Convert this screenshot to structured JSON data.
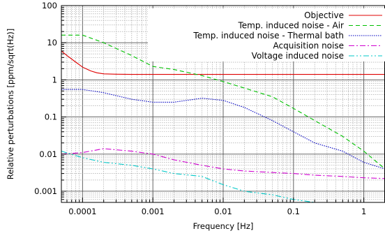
{
  "chart_data": {
    "type": "line",
    "xlabel": "Frequency [Hz]",
    "ylabel": "Relative perturbations [ppm/sqrt(Hz)]",
    "xscale": "log",
    "yscale": "log",
    "xlim": [
      5e-05,
      2
    ],
    "ylim": [
      0.0005,
      100
    ],
    "grid": true,
    "legend_position": "top-right",
    "x_tick_labels": [
      "0.0001",
      "0.001",
      "0.01",
      "0.1",
      "1"
    ],
    "y_tick_labels": [
      "0.001",
      "0.01",
      "0.1",
      "1",
      "10",
      "100"
    ],
    "series": [
      {
        "name": "Objective",
        "color": "#e00000",
        "dash": "solid",
        "x": [
          5e-05,
          6e-05,
          8e-05,
          0.0001,
          0.00013,
          0.00016,
          0.0002,
          0.0003,
          0.0005,
          0.001,
          0.01,
          0.1,
          1,
          2
        ],
        "y": [
          6.0,
          4.5,
          3.0,
          2.2,
          1.75,
          1.55,
          1.45,
          1.42,
          1.4,
          1.4,
          1.4,
          1.4,
          1.4,
          1.4
        ]
      },
      {
        "name": "Temp. induced noise - Air",
        "color": "#00c000",
        "dash": "dashed",
        "x": [
          5e-05,
          0.0001,
          0.0002,
          0.0005,
          0.001,
          0.002,
          0.005,
          0.01,
          0.02,
          0.05,
          0.1,
          0.2,
          0.5,
          1,
          2
        ],
        "y": [
          16,
          16,
          10,
          4.5,
          2.3,
          1.9,
          1.3,
          0.9,
          0.6,
          0.35,
          0.17,
          0.08,
          0.03,
          0.012,
          0.004
        ]
      },
      {
        "name": "Temp. induced noise - Thermal bath",
        "color": "#0000c0",
        "dash": "dotted",
        "x": [
          5e-05,
          0.0001,
          0.0002,
          0.0005,
          0.001,
          0.002,
          0.005,
          0.01,
          0.02,
          0.05,
          0.1,
          0.2,
          0.5,
          1,
          2
        ],
        "y": [
          0.55,
          0.55,
          0.45,
          0.3,
          0.25,
          0.25,
          0.32,
          0.28,
          0.18,
          0.08,
          0.04,
          0.02,
          0.012,
          0.006,
          0.004
        ]
      },
      {
        "name": "Acquisition noise",
        "color": "#d000d0",
        "dash": "dash-dot",
        "x": [
          5e-05,
          0.0001,
          0.0002,
          0.0005,
          0.001,
          0.002,
          0.005,
          0.01,
          0.02,
          0.05,
          0.1,
          0.2,
          0.5,
          1,
          2
        ],
        "y": [
          0.01,
          0.011,
          0.014,
          0.012,
          0.01,
          0.007,
          0.005,
          0.004,
          0.0035,
          0.0032,
          0.003,
          0.0027,
          0.0025,
          0.0023,
          0.0022
        ]
      },
      {
        "name": "Voltage induced noise",
        "color": "#00c8c8",
        "dash": "dash-dot-dot",
        "x": [
          5e-05,
          0.0001,
          0.0002,
          0.0005,
          0.001,
          0.002,
          0.005,
          0.01,
          0.02,
          0.05,
          0.1,
          0.2
        ],
        "y": [
          0.012,
          0.008,
          0.006,
          0.005,
          0.004,
          0.003,
          0.0025,
          0.0015,
          0.001,
          0.0008,
          0.0006,
          0.0005
        ]
      }
    ]
  }
}
